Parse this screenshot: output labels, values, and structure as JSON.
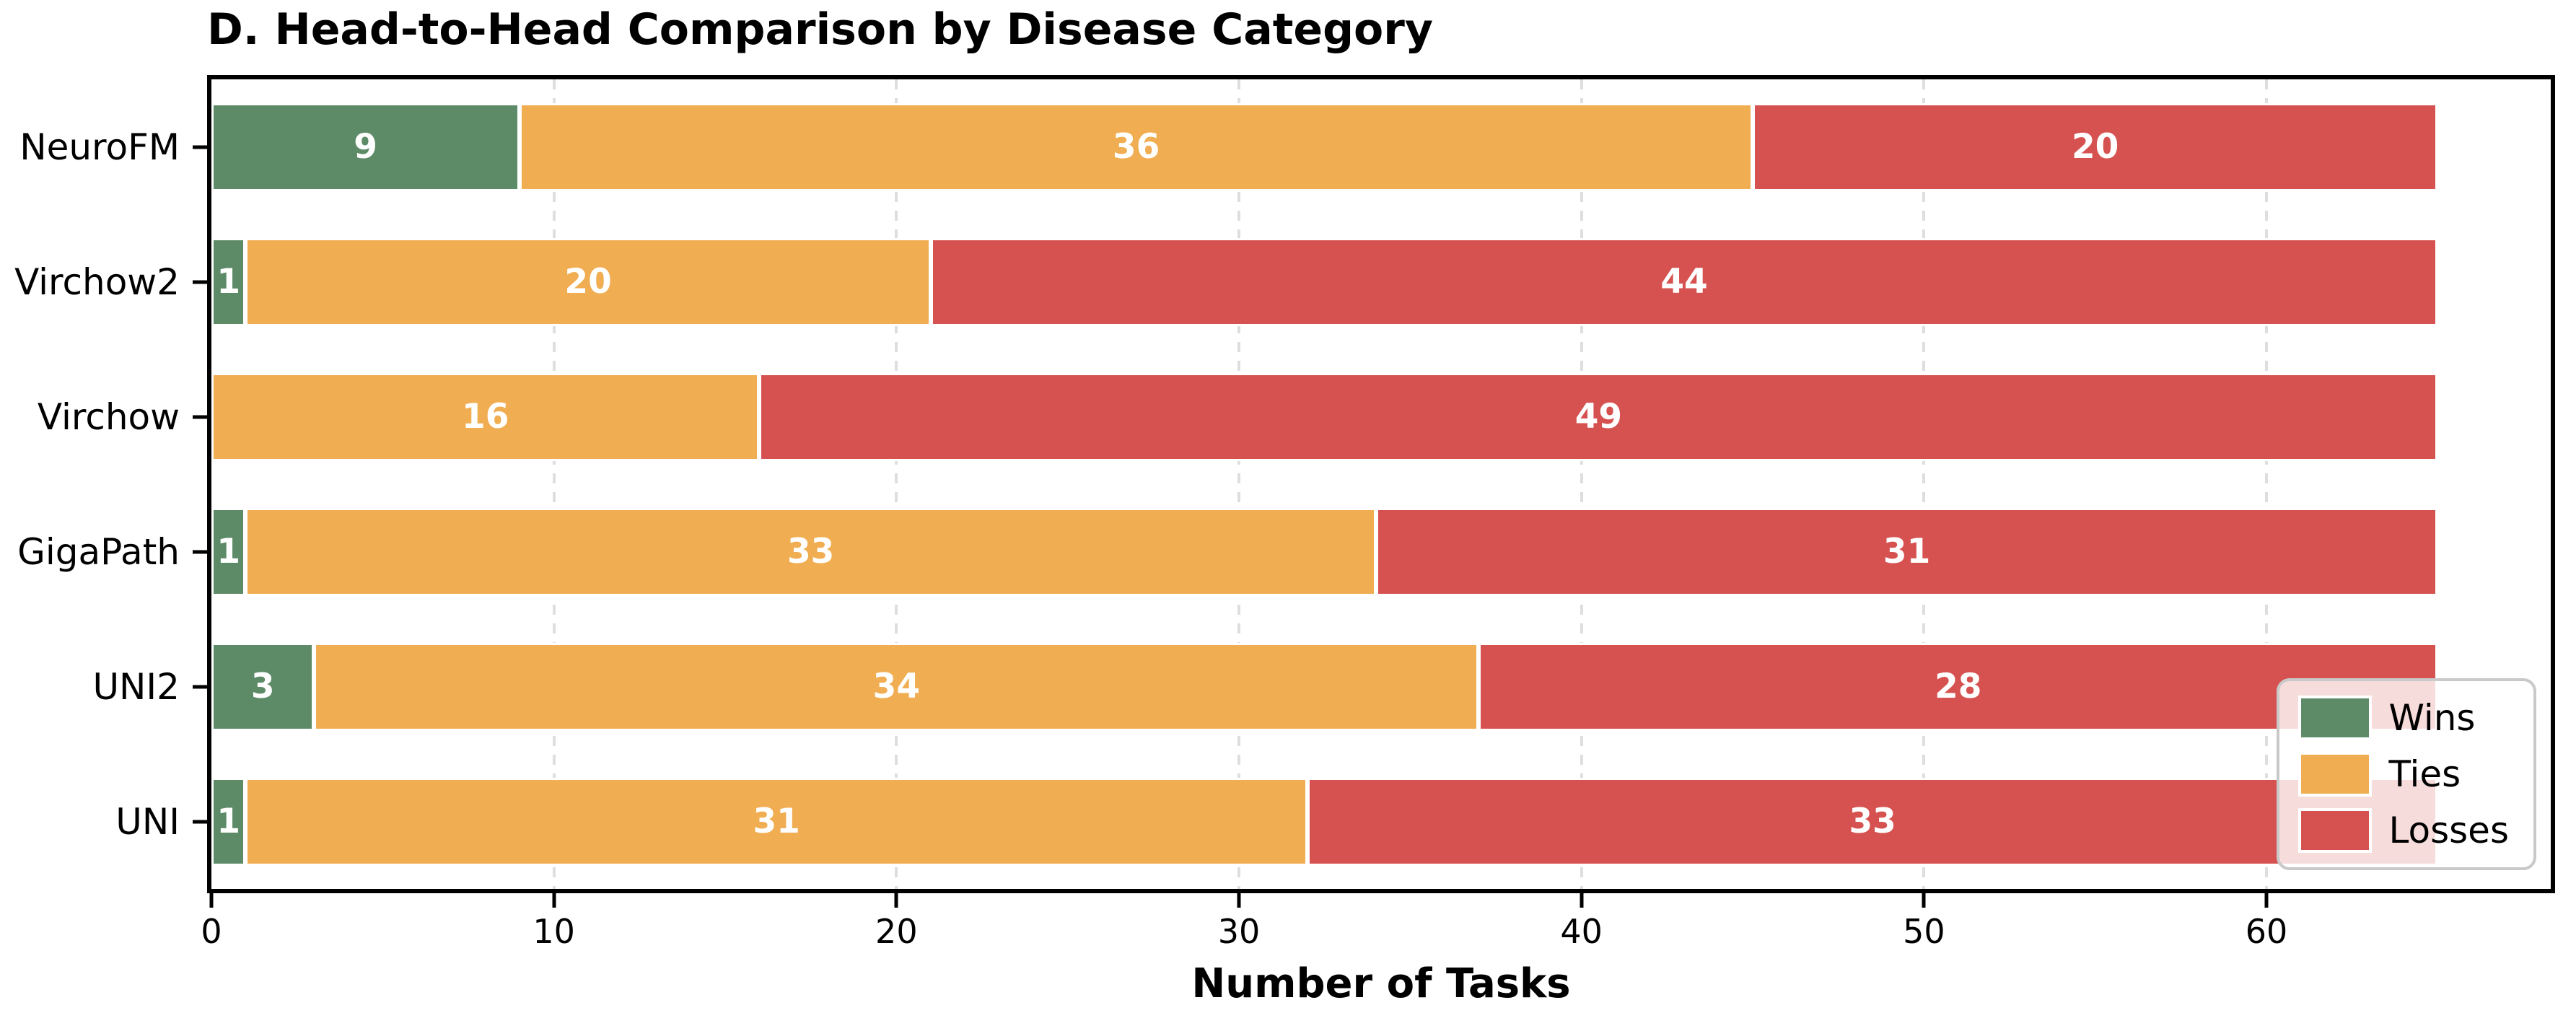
{
  "title": "D. Head-to-Head Comparison by Disease Category",
  "xlabel": "Number of Tasks",
  "colors": {
    "wins": "#5d8b67",
    "ties": "#f0ad51",
    "losses": "#d65250",
    "grid": "#dedede",
    "spine": "#000000",
    "legend_border": "#c9c9c9",
    "value_label": "#ffffff"
  },
  "legend": {
    "items": [
      {
        "label": "Wins",
        "color": "#5d8b67"
      },
      {
        "label": "Ties",
        "color": "#f0ad51"
      },
      {
        "label": "Losses",
        "color": "#d65250"
      }
    ]
  },
  "chart_data": {
    "type": "bar",
    "orientation": "horizontal",
    "stacked": true,
    "title": "D. Head-to-Head Comparison by Disease Category",
    "xlabel": "Number of Tasks",
    "ylabel": "",
    "categories": [
      "NeuroFM",
      "Virchow2",
      "Virchow",
      "GigaPath",
      "UNI2",
      "UNI"
    ],
    "series": [
      {
        "name": "Wins",
        "color": "#5d8b67",
        "values": [
          9,
          1,
          0,
          1,
          3,
          1
        ]
      },
      {
        "name": "Ties",
        "color": "#f0ad51",
        "values": [
          36,
          20,
          16,
          33,
          34,
          31
        ]
      },
      {
        "name": "Losses",
        "color": "#d65250",
        "values": [
          20,
          44,
          49,
          31,
          28,
          33
        ]
      }
    ],
    "totals": [
      65,
      65,
      65,
      65,
      65,
      65
    ],
    "xticks": [
      0,
      10,
      20,
      30,
      40,
      50,
      60
    ],
    "xlim": [
      0,
      68.3
    ],
    "grid": "vertical-dashed",
    "legend_position": "lower-right",
    "bar_value_labels": true
  }
}
